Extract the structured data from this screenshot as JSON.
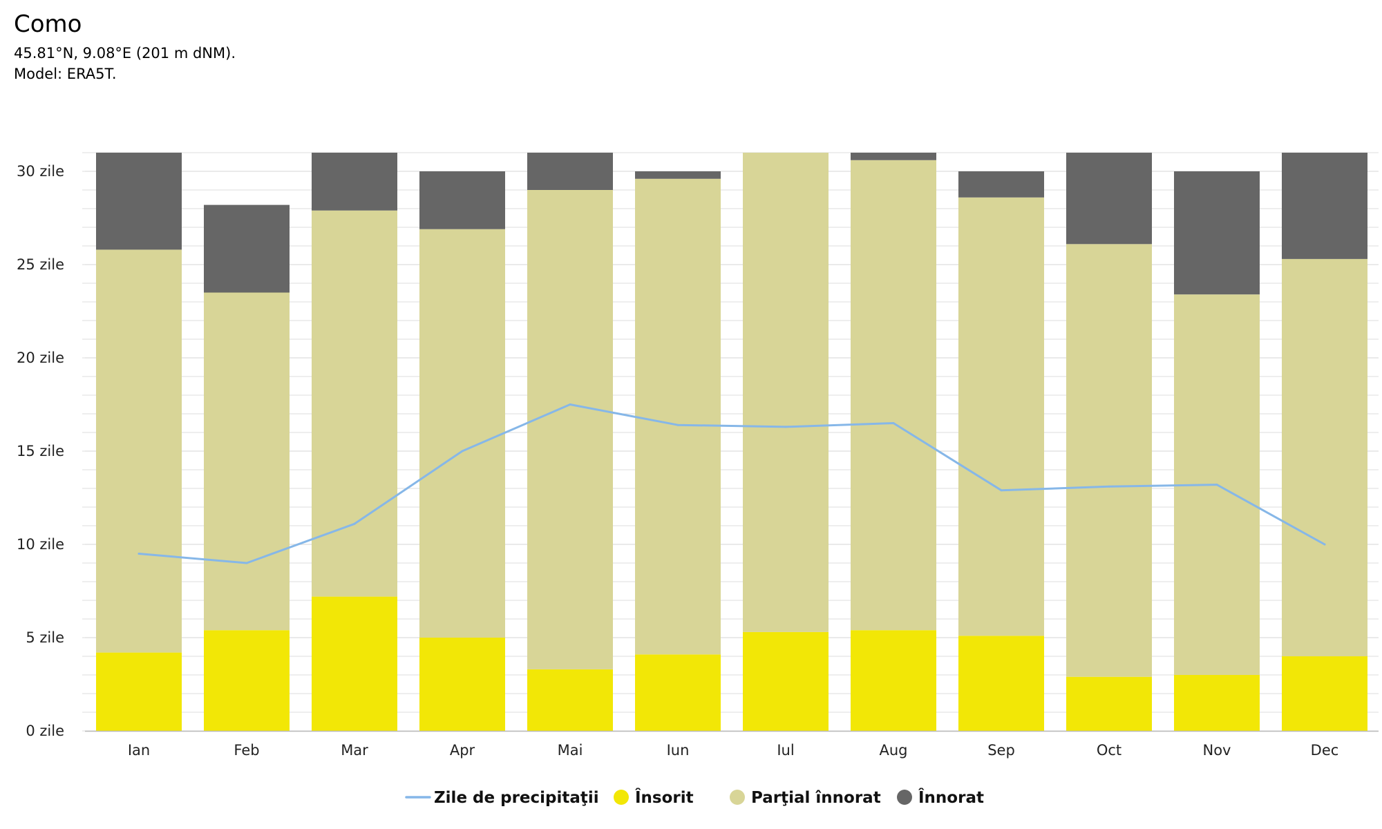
{
  "header": {
    "title": "Como",
    "coords": "45.81°N, 9.08°E (201 m dNM).",
    "model": "Model: ERA5T."
  },
  "colors": {
    "sunny": "#f2e706",
    "partly": "#d8d597",
    "overcast": "#666666",
    "precip": "#86b7e8",
    "grid": "#dddddd",
    "axis": "#bbbbbb"
  },
  "chart_data": {
    "type": "bar",
    "stacked": true,
    "categories": [
      "Ian",
      "Feb",
      "Mar",
      "Apr",
      "Mai",
      "Iun",
      "Iul",
      "Aug",
      "Sep",
      "Oct",
      "Nov",
      "Dec"
    ],
    "series": [
      {
        "name": "Însorit",
        "kind": "bar",
        "color": "#f2e706",
        "values": [
          4.2,
          5.4,
          7.2,
          5.0,
          3.3,
          4.1,
          5.3,
          5.4,
          5.1,
          2.9,
          3.0,
          4.0
        ]
      },
      {
        "name": "Parţial înnorat",
        "kind": "bar",
        "color": "#d8d597",
        "values": [
          21.6,
          18.1,
          20.7,
          21.9,
          25.7,
          25.5,
          25.7,
          25.2,
          23.5,
          23.2,
          20.4,
          21.3
        ]
      },
      {
        "name": "Înnorat",
        "kind": "bar",
        "color": "#666666",
        "values": [
          5.2,
          4.7,
          3.1,
          3.1,
          2.0,
          0.4,
          0.0,
          0.4,
          1.4,
          4.9,
          6.6,
          5.7
        ]
      },
      {
        "name": "Zile de precipitaţii",
        "kind": "line",
        "color": "#86b7e8",
        "values": [
          9.5,
          9.0,
          11.1,
          15.0,
          17.5,
          16.4,
          16.3,
          16.5,
          12.9,
          13.1,
          13.2,
          10.0
        ]
      }
    ],
    "ylim": [
      0,
      31
    ],
    "yticks": [
      {
        "value": 0,
        "label": "0 zile"
      },
      {
        "value": 5,
        "label": "5 zile"
      },
      {
        "value": 10,
        "label": "10 zile"
      },
      {
        "value": 15,
        "label": "15 zile"
      },
      {
        "value": 20,
        "label": "20 zile"
      },
      {
        "value": 25,
        "label": "25 zile"
      },
      {
        "value": 30,
        "label": "30 zile"
      }
    ],
    "minor_grid_step": 1,
    "grid": true,
    "legend": {
      "position": "bottom-center",
      "items": [
        {
          "name": "Zile de precipitaţii",
          "symbol": "line",
          "color": "#86b7e8"
        },
        {
          "name": "Însorit",
          "symbol": "circle",
          "color": "#f2e706"
        },
        {
          "name": "Parţial înnorat",
          "symbol": "circle",
          "color": "#d8d597"
        },
        {
          "name": "Înnorat",
          "symbol": "circle",
          "color": "#666666"
        }
      ]
    }
  }
}
